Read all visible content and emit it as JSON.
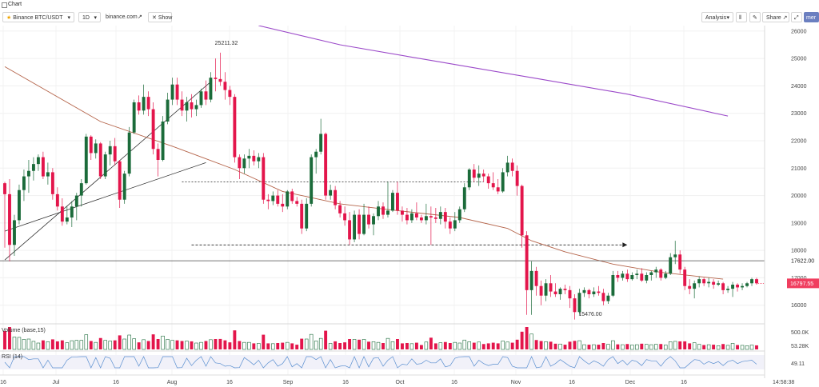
{
  "window": {
    "tab_label": "Chart"
  },
  "toolbar": {
    "symbol": "Binance BTC/USDT",
    "interval": "1D",
    "source": "binance.com",
    "show_button": "Show",
    "analysis": "Analysis",
    "share": "Share",
    "more": "mer"
  },
  "colors": {
    "up": "#1b6b3a",
    "down": "#e3154b",
    "ma_fast": "#b5654b",
    "ma_slow": "#9b49c9",
    "price_tag": "#f03e5f"
  },
  "chart_data": [
    {
      "type": "candlestick",
      "y_ticks": [
        "26000",
        "25000",
        "24000",
        "23000",
        "22000",
        "21000",
        "20000",
        "19000",
        "18000",
        "17000",
        "16000"
      ],
      "ylim": [
        15350,
        26200
      ],
      "x_ticks": [
        "16",
        "Jul",
        "16",
        "Aug",
        "16",
        "Sep",
        "16",
        "Oct",
        "16",
        "Nov",
        "16",
        "Dec",
        "16"
      ],
      "annotations": {
        "high": "25211.32",
        "low": "15476.00",
        "horizontal_level": "17622.00",
        "last_price": "16797.55"
      },
      "ohlc": [
        [
          20450,
          20500,
          18100,
          20050
        ],
        [
          20050,
          20600,
          17600,
          18200
        ],
        [
          18200,
          19300,
          17800,
          19100
        ],
        [
          19100,
          20400,
          18950,
          20200
        ],
        [
          20200,
          20950,
          19800,
          20700
        ],
        [
          20700,
          21300,
          20100,
          20900
        ],
        [
          20900,
          21400,
          20550,
          21150
        ],
        [
          21150,
          21500,
          20900,
          21400
        ],
        [
          21400,
          21600,
          20600,
          20700
        ],
        [
          20700,
          21200,
          20400,
          20850
        ],
        [
          20850,
          21000,
          19850,
          20050
        ],
        [
          20050,
          20300,
          19450,
          19600
        ],
        [
          19600,
          19900,
          18900,
          19050
        ],
        [
          19050,
          19600,
          18950,
          19200
        ],
        [
          19200,
          19800,
          18850,
          19600
        ],
        [
          19600,
          20100,
          19100,
          20000
        ],
        [
          20000,
          20600,
          19600,
          20450
        ],
        [
          20450,
          22250,
          20400,
          22150
        ],
        [
          22150,
          22200,
          21300,
          21550
        ],
        [
          21550,
          22050,
          21350,
          21900
        ],
        [
          21900,
          21950,
          20600,
          20700
        ],
        [
          20700,
          21600,
          20600,
          21500
        ],
        [
          21500,
          22000,
          21100,
          21800
        ],
        [
          21800,
          22100,
          21100,
          21250
        ],
        [
          21250,
          21300,
          19550,
          19850
        ],
        [
          19850,
          20900,
          19700,
          20800
        ],
        [
          20800,
          22500,
          20700,
          22300
        ],
        [
          22300,
          23500,
          22250,
          23400
        ],
        [
          23400,
          23650,
          22950,
          23100
        ],
        [
          23100,
          24050,
          22950,
          23600
        ],
        [
          23600,
          23800,
          22900,
          23150
        ],
        [
          23150,
          23400,
          21500,
          21700
        ],
        [
          21700,
          21900,
          20700,
          21300
        ],
        [
          21300,
          22900,
          21250,
          22700
        ],
        [
          22700,
          23750,
          22600,
          23500
        ],
        [
          23500,
          24300,
          23300,
          24050
        ],
        [
          24050,
          24300,
          23300,
          23500
        ],
        [
          23500,
          23800,
          22900,
          23100
        ],
        [
          23100,
          23600,
          22700,
          23400
        ],
        [
          23400,
          23700,
          22850,
          23150
        ],
        [
          23150,
          23500,
          22900,
          23300
        ],
        [
          23300,
          23900,
          23200,
          23800
        ],
        [
          23800,
          24200,
          23300,
          23500
        ],
        [
          23500,
          24500,
          23400,
          24300
        ],
        [
          24300,
          25000,
          23800,
          24250
        ],
        [
          24250,
          25211,
          24000,
          24150
        ],
        [
          24150,
          24500,
          23500,
          23850
        ],
        [
          23850,
          24000,
          23300,
          23600
        ],
        [
          23600,
          23700,
          21200,
          21400
        ],
        [
          21400,
          21500,
          20600,
          21000
        ],
        [
          21000,
          21500,
          20800,
          21350
        ],
        [
          21350,
          21700,
          21000,
          21450
        ],
        [
          21450,
          21650,
          21100,
          21250
        ],
        [
          21250,
          21550,
          21000,
          21400
        ],
        [
          21400,
          21550,
          19700,
          19850
        ],
        [
          19850,
          20050,
          19500,
          19800
        ],
        [
          19800,
          20150,
          19650,
          20000
        ],
        [
          20000,
          20200,
          19600,
          19700
        ],
        [
          19700,
          20050,
          19400,
          19600
        ],
        [
          19600,
          20200,
          19500,
          20150
        ],
        [
          20150,
          20250,
          19700,
          19800
        ],
        [
          19800,
          19950,
          19600,
          19700
        ],
        [
          19700,
          19850,
          18600,
          18800
        ],
        [
          18800,
          19900,
          18700,
          19700
        ],
        [
          19700,
          21500,
          19600,
          21400
        ],
        [
          21400,
          21700,
          20800,
          21600
        ],
        [
          21600,
          22800,
          21500,
          22250
        ],
        [
          22250,
          22300,
          19850,
          20000
        ],
        [
          20000,
          20400,
          19850,
          20200
        ],
        [
          20200,
          20350,
          19500,
          19650
        ],
        [
          19650,
          19800,
          19200,
          19350
        ],
        [
          19350,
          19600,
          18900,
          19100
        ],
        [
          19100,
          19400,
          18200,
          18400
        ],
        [
          18400,
          19450,
          18300,
          19300
        ],
        [
          19300,
          19500,
          18400,
          18600
        ],
        [
          18600,
          19700,
          18550,
          19300
        ],
        [
          19300,
          19600,
          18800,
          18950
        ],
        [
          18950,
          19350,
          18550,
          19250
        ],
        [
          19250,
          19800,
          19100,
          19600
        ],
        [
          19600,
          19750,
          19150,
          19300
        ],
        [
          19300,
          20500,
          19200,
          19450
        ],
        [
          19450,
          20200,
          19400,
          20100
        ],
        [
          20100,
          20500,
          19300,
          19450
        ],
        [
          19450,
          19600,
          19050,
          19300
        ],
        [
          19300,
          19550,
          18950,
          19100
        ],
        [
          19100,
          19500,
          19000,
          19350
        ],
        [
          19350,
          19750,
          19100,
          19200
        ],
        [
          19200,
          19300,
          19000,
          19100
        ],
        [
          19100,
          19700,
          18950,
          19250
        ],
        [
          19250,
          19600,
          18200,
          19200
        ],
        [
          19200,
          19550,
          19000,
          19150
        ],
        [
          19150,
          19600,
          18950,
          19400
        ],
        [
          19400,
          19550,
          18800,
          19050
        ],
        [
          19050,
          19200,
          18600,
          18800
        ],
        [
          18800,
          19400,
          18700,
          19100
        ],
        [
          19100,
          19600,
          19000,
          19500
        ],
        [
          19500,
          20450,
          19400,
          20300
        ],
        [
          20300,
          21000,
          20200,
          20950
        ],
        [
          20950,
          21150,
          20500,
          20650
        ],
        [
          20650,
          21100,
          20350,
          20800
        ],
        [
          20800,
          20950,
          20500,
          20700
        ],
        [
          20700,
          20800,
          20250,
          20450
        ],
        [
          20450,
          20850,
          20200,
          20300
        ],
        [
          20300,
          20600,
          20050,
          20150
        ],
        [
          20150,
          21000,
          20100,
          20850
        ],
        [
          20850,
          21450,
          20700,
          21200
        ],
        [
          21200,
          21350,
          20700,
          20900
        ],
        [
          20900,
          21100,
          20000,
          20350
        ],
        [
          20350,
          20400,
          18100,
          18550
        ],
        [
          18550,
          18700,
          15650,
          16550
        ],
        [
          16550,
          17600,
          15650,
          17250
        ],
        [
          17250,
          17400,
          16350,
          16700
        ],
        [
          16700,
          16900,
          16000,
          16350
        ],
        [
          16350,
          16950,
          16150,
          16800
        ],
        [
          16800,
          17100,
          16300,
          16500
        ],
        [
          16500,
          16800,
          16300,
          16400
        ],
        [
          16400,
          16650,
          16200,
          16600
        ],
        [
          16600,
          16750,
          16400,
          16550
        ],
        [
          16550,
          16700,
          15900,
          16250
        ],
        [
          16250,
          16400,
          15476,
          15750
        ],
        [
          15750,
          16600,
          15650,
          16450
        ],
        [
          16450,
          16650,
          16300,
          16550
        ],
        [
          16550,
          16600,
          16250,
          16400
        ],
        [
          16400,
          16650,
          16300,
          16500
        ],
        [
          16500,
          16700,
          16350,
          16450
        ],
        [
          16450,
          16600,
          16000,
          16150
        ],
        [
          16150,
          16450,
          16050,
          16350
        ],
        [
          16350,
          17250,
          16300,
          17100
        ],
        [
          17100,
          17250,
          16850,
          17000
        ],
        [
          17000,
          17250,
          16900,
          17150
        ],
        [
          17150,
          17300,
          16850,
          16950
        ],
        [
          16950,
          17200,
          16900,
          17100
        ],
        [
          17100,
          17300,
          16950,
          17150
        ],
        [
          17150,
          17350,
          16850,
          16900
        ],
        [
          16900,
          17200,
          16800,
          17100
        ],
        [
          17100,
          17250,
          16900,
          17200
        ],
        [
          17200,
          17400,
          17000,
          17300
        ],
        [
          17300,
          17350,
          16900,
          17000
        ],
        [
          17000,
          17250,
          16950,
          17150
        ],
        [
          17150,
          17900,
          17100,
          17750
        ],
        [
          17750,
          18350,
          17500,
          17850
        ],
        [
          17850,
          18000,
          17150,
          17300
        ],
        [
          17300,
          17400,
          16550,
          16700
        ],
        [
          16700,
          16950,
          16400,
          16600
        ],
        [
          16600,
          16900,
          16250,
          16800
        ],
        [
          16800,
          17050,
          16650,
          16950
        ],
        [
          16950,
          17000,
          16700,
          16800
        ],
        [
          16800,
          17000,
          16650,
          16850
        ],
        [
          16850,
          16950,
          16600,
          16750
        ],
        [
          16750,
          16900,
          16700,
          16800
        ],
        [
          16800,
          16850,
          16400,
          16550
        ],
        [
          16550,
          16700,
          16450,
          16600
        ],
        [
          16600,
          16850,
          16300,
          16750
        ],
        [
          16750,
          16800,
          16500,
          16650
        ],
        [
          16650,
          16800,
          16550,
          16700
        ],
        [
          16700,
          16850,
          16650,
          16800
        ],
        [
          16800,
          17000,
          16700,
          16950
        ],
        [
          16950,
          17000,
          16750,
          16800
        ]
      ],
      "ma_fast": [
        [
          0,
          24700
        ],
        [
          20,
          22700
        ],
        [
          35,
          21800
        ],
        [
          48,
          20950
        ],
        [
          58,
          20150
        ],
        [
          70,
          19700
        ],
        [
          82,
          19450
        ],
        [
          95,
          19200
        ],
        [
          105,
          18800
        ],
        [
          110,
          18350
        ],
        [
          117,
          17950
        ],
        [
          127,
          17500
        ],
        [
          137,
          17200
        ],
        [
          150,
          16950
        ]
      ],
      "ma_slow": [
        [
          53,
          26200
        ],
        [
          70,
          25500
        ],
        [
          90,
          24900
        ],
        [
          110,
          24300
        ],
        [
          130,
          23700
        ],
        [
          151,
          22900
        ]
      ],
      "trend_lines": [
        [
          [
            0,
            17650
          ],
          [
            43,
            24150
          ]
        ],
        [
          [
            0,
            18700
          ],
          [
            42,
            21200
          ]
        ]
      ],
      "horizontal_lines": [
        [
          [
            37,
            20500
          ],
          [
            100,
            20500
          ]
        ],
        [
          [
            39,
            18200
          ],
          [
            129,
            18200
          ]
        ]
      ]
    },
    {
      "type": "bar",
      "title": "Volume (base,15)",
      "y_ticks": [
        "500.0K",
        "53.28K"
      ]
    },
    {
      "type": "line",
      "title": "RSI (14)",
      "y_ticks": [
        "49.11"
      ]
    }
  ]
}
